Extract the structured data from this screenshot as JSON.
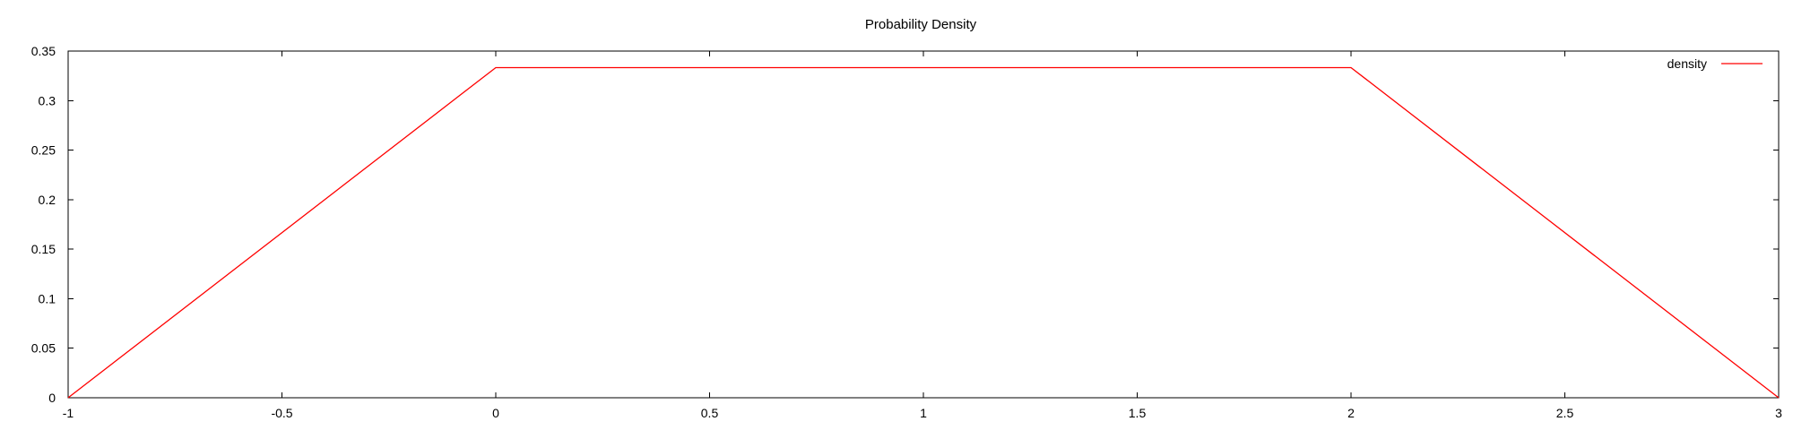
{
  "chart_data": {
    "type": "line",
    "title": "Probability Density",
    "xlabel": "",
    "ylabel": "",
    "xlim": [
      -1,
      3
    ],
    "ylim": [
      0,
      0.35
    ],
    "x_ticks": [
      "-1",
      "-0.5",
      "0",
      "0.5",
      "1",
      "1.5",
      "2",
      "2.5",
      "3"
    ],
    "y_ticks": [
      "0",
      "0.05",
      "0.1",
      "0.15",
      "0.2",
      "0.25",
      "0.3",
      "0.35"
    ],
    "grid": false,
    "legend_position": "top-right",
    "series": [
      {
        "name": "density",
        "color": "#ff0000",
        "x": [
          -1,
          0,
          2,
          3
        ],
        "y": [
          0,
          0.3333,
          0.3333,
          0
        ]
      }
    ]
  }
}
